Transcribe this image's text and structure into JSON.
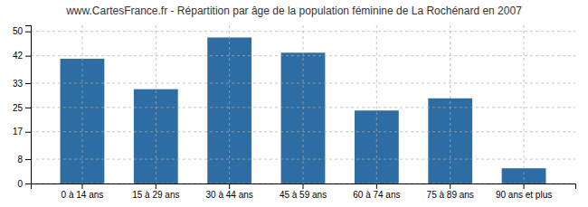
{
  "chart_data": {
    "type": "bar",
    "title": "www.CartesFrance.fr - Répartition par âge de la population féminine de La Rochénard en 2007",
    "categories": [
      "0 à 14 ans",
      "15 à 29 ans",
      "30 à 44 ans",
      "45 à 59 ans",
      "60 à 74 ans",
      "75 à 89 ans",
      "90 ans et plus"
    ],
    "values": [
      41,
      31,
      48,
      43,
      24,
      28,
      5
    ],
    "color": "#2e6da4",
    "ylim": [
      0,
      52
    ],
    "yticks": [
      0,
      8,
      17,
      25,
      33,
      42,
      50
    ],
    "grid": true
  }
}
